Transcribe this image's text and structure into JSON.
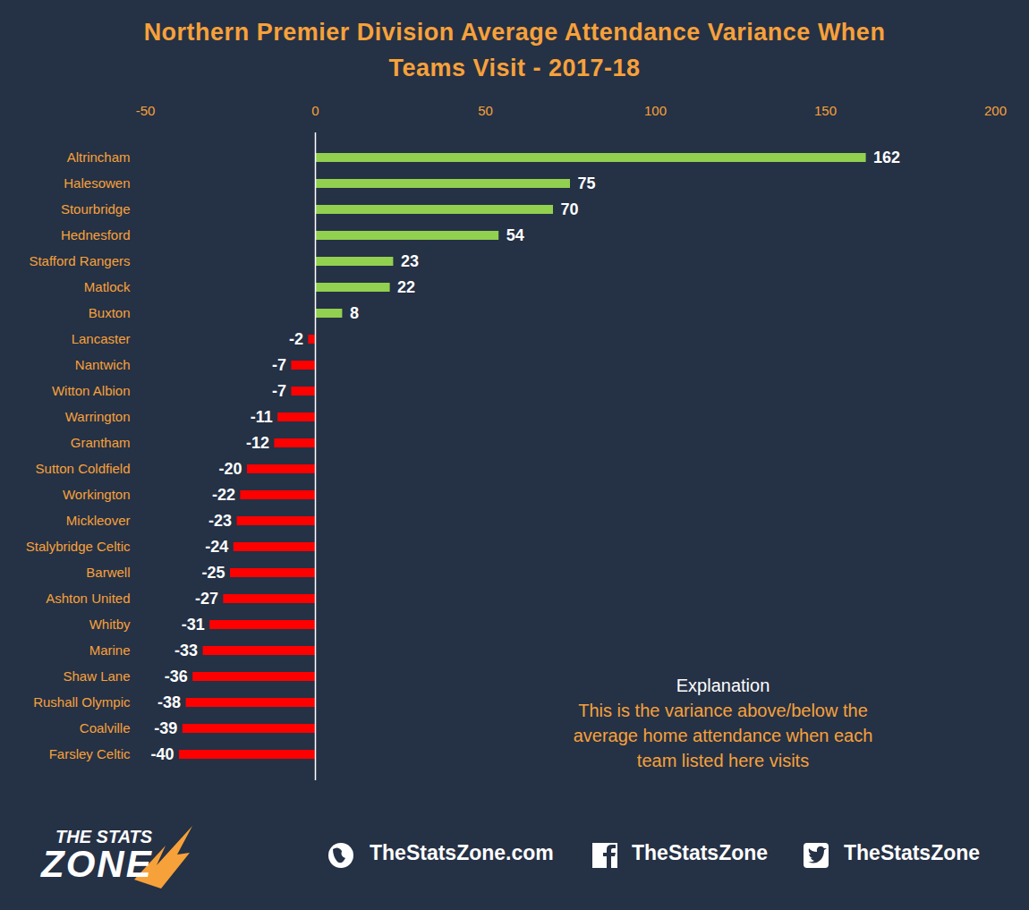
{
  "chart_data": {
    "type": "bar",
    "orientation": "horizontal",
    "title": "Northern Premier Division Average Attendance Variance When Teams Visit - 2017-18",
    "categories": [
      "Altrincham",
      "Halesowen",
      "Stourbridge",
      "Hednesford",
      "Stafford Rangers",
      "Matlock",
      "Buxton",
      "Lancaster",
      "Nantwich",
      "Witton Albion",
      "Warrington",
      "Grantham",
      "Sutton Coldfield",
      "Workington",
      "Mickleover",
      "Stalybridge Celtic",
      "Barwell",
      "Ashton United",
      "Whitby",
      "Marine",
      "Shaw Lane",
      "Rushall Olympic",
      "Coalville",
      "Farsley Celtic"
    ],
    "values": [
      162,
      75,
      70,
      54,
      23,
      22,
      8,
      -2,
      -7,
      -7,
      -11,
      -12,
      -20,
      -22,
      -23,
      -24,
      -25,
      -27,
      -31,
      -33,
      -36,
      -38,
      -39,
      -40
    ],
    "colors": [
      "#92d050",
      "#92d050",
      "#92d050",
      "#92d050",
      "#92d050",
      "#92d050",
      "#92d050",
      "#ff0000",
      "#ff0000",
      "#ff0000",
      "#ff0000",
      "#ff0000",
      "#ff0000",
      "#ff0000",
      "#ff0000",
      "#ff0000",
      "#ff0000",
      "#ff0000",
      "#ff0000",
      "#ff0000",
      "#ff0000",
      "#ff0000",
      "#ff0000",
      "#ff0000"
    ],
    "xlim": [
      -50,
      200
    ],
    "xticks": [
      -50,
      0,
      50,
      100,
      150,
      200
    ],
    "grid": false,
    "data_labels": true,
    "annotations": [
      {
        "title": "Explanation",
        "lines": [
          "This is the variance above/below the",
          "average home attendance when each",
          "team listed here visits"
        ]
      }
    ]
  },
  "footer": {
    "logo": [
      "THE STATS",
      "ZONE"
    ],
    "links": [
      "TheStatsZone.com",
      "TheStatsZone",
      "TheStatsZone"
    ]
  }
}
